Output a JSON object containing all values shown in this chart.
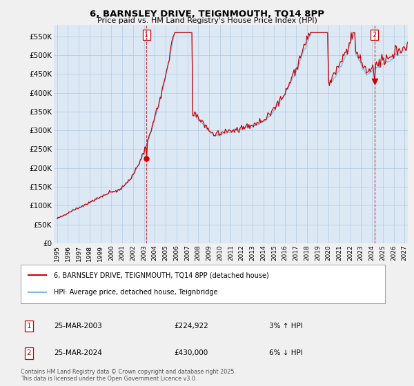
{
  "title": "6, BARNSLEY DRIVE, TEIGNMOUTH, TQ14 8PP",
  "subtitle": "Price paid vs. HM Land Registry's House Price Index (HPI)",
  "legend_line1": "6, BARNSLEY DRIVE, TEIGNMOUTH, TQ14 8PP (detached house)",
  "legend_line2": "HPI: Average price, detached house, Teignbridge",
  "annotation1_label": "1",
  "annotation1_date": "25-MAR-2003",
  "annotation1_price": "£224,922",
  "annotation1_hpi": "3% ↑ HPI",
  "annotation2_label": "2",
  "annotation2_date": "25-MAR-2024",
  "annotation2_price": "£430,000",
  "annotation2_hpi": "6% ↓ HPI",
  "footnote": "Contains HM Land Registry data © Crown copyright and database right 2025.\nThis data is licensed under the Open Government Licence v3.0.",
  "ylim": [
    0,
    580000
  ],
  "yticks": [
    0,
    50000,
    100000,
    150000,
    200000,
    250000,
    300000,
    350000,
    400000,
    450000,
    500000,
    550000
  ],
  "ytick_labels": [
    "£0",
    "£50K",
    "£100K",
    "£150K",
    "£200K",
    "£250K",
    "£300K",
    "£350K",
    "£400K",
    "£450K",
    "£500K",
    "£550K"
  ],
  "hpi_color": "#7cb8e8",
  "price_color": "#cc0000",
  "marker1_x": 2003.23,
  "marker1_y": 224922,
  "marker2_x": 2024.23,
  "marker2_y": 430000,
  "background_color": "#f0f0f0",
  "plot_bg_color": "#dce9f5",
  "grid_color": "#b0c8e0",
  "xlim_left": 1994.7,
  "xlim_right": 2027.3
}
